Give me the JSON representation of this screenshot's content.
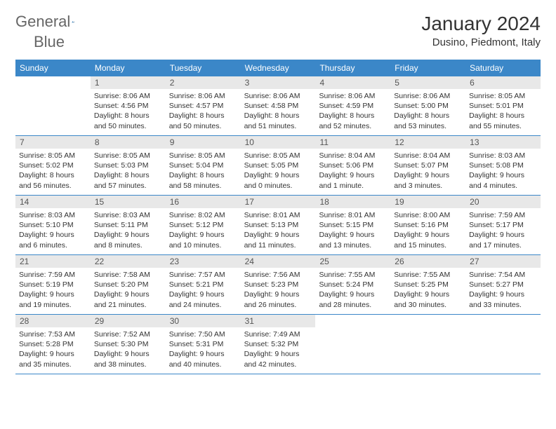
{
  "brand": {
    "word1": "General",
    "word2": "Blue"
  },
  "title": "January 2024",
  "location": "Dusino, Piedmont, Italy",
  "colors": {
    "header_bg": "#3b87c8",
    "daynum_bg": "#e8e8e8",
    "rule": "#3b87c8",
    "logo_blue": "#2a7ab8",
    "text_gray": "#666"
  },
  "day_names": [
    "Sunday",
    "Monday",
    "Tuesday",
    "Wednesday",
    "Thursday",
    "Friday",
    "Saturday"
  ],
  "weeks": [
    [
      {
        "n": "",
        "sr": "",
        "ss": "",
        "dl1": "",
        "dl2": ""
      },
      {
        "n": "1",
        "sr": "Sunrise: 8:06 AM",
        "ss": "Sunset: 4:56 PM",
        "dl1": "Daylight: 8 hours",
        "dl2": "and 50 minutes."
      },
      {
        "n": "2",
        "sr": "Sunrise: 8:06 AM",
        "ss": "Sunset: 4:57 PM",
        "dl1": "Daylight: 8 hours",
        "dl2": "and 50 minutes."
      },
      {
        "n": "3",
        "sr": "Sunrise: 8:06 AM",
        "ss": "Sunset: 4:58 PM",
        "dl1": "Daylight: 8 hours",
        "dl2": "and 51 minutes."
      },
      {
        "n": "4",
        "sr": "Sunrise: 8:06 AM",
        "ss": "Sunset: 4:59 PM",
        "dl1": "Daylight: 8 hours",
        "dl2": "and 52 minutes."
      },
      {
        "n": "5",
        "sr": "Sunrise: 8:06 AM",
        "ss": "Sunset: 5:00 PM",
        "dl1": "Daylight: 8 hours",
        "dl2": "and 53 minutes."
      },
      {
        "n": "6",
        "sr": "Sunrise: 8:05 AM",
        "ss": "Sunset: 5:01 PM",
        "dl1": "Daylight: 8 hours",
        "dl2": "and 55 minutes."
      }
    ],
    [
      {
        "n": "7",
        "sr": "Sunrise: 8:05 AM",
        "ss": "Sunset: 5:02 PM",
        "dl1": "Daylight: 8 hours",
        "dl2": "and 56 minutes."
      },
      {
        "n": "8",
        "sr": "Sunrise: 8:05 AM",
        "ss": "Sunset: 5:03 PM",
        "dl1": "Daylight: 8 hours",
        "dl2": "and 57 minutes."
      },
      {
        "n": "9",
        "sr": "Sunrise: 8:05 AM",
        "ss": "Sunset: 5:04 PM",
        "dl1": "Daylight: 8 hours",
        "dl2": "and 58 minutes."
      },
      {
        "n": "10",
        "sr": "Sunrise: 8:05 AM",
        "ss": "Sunset: 5:05 PM",
        "dl1": "Daylight: 9 hours",
        "dl2": "and 0 minutes."
      },
      {
        "n": "11",
        "sr": "Sunrise: 8:04 AM",
        "ss": "Sunset: 5:06 PM",
        "dl1": "Daylight: 9 hours",
        "dl2": "and 1 minute."
      },
      {
        "n": "12",
        "sr": "Sunrise: 8:04 AM",
        "ss": "Sunset: 5:07 PM",
        "dl1": "Daylight: 9 hours",
        "dl2": "and 3 minutes."
      },
      {
        "n": "13",
        "sr": "Sunrise: 8:03 AM",
        "ss": "Sunset: 5:08 PM",
        "dl1": "Daylight: 9 hours",
        "dl2": "and 4 minutes."
      }
    ],
    [
      {
        "n": "14",
        "sr": "Sunrise: 8:03 AM",
        "ss": "Sunset: 5:10 PM",
        "dl1": "Daylight: 9 hours",
        "dl2": "and 6 minutes."
      },
      {
        "n": "15",
        "sr": "Sunrise: 8:03 AM",
        "ss": "Sunset: 5:11 PM",
        "dl1": "Daylight: 9 hours",
        "dl2": "and 8 minutes."
      },
      {
        "n": "16",
        "sr": "Sunrise: 8:02 AM",
        "ss": "Sunset: 5:12 PM",
        "dl1": "Daylight: 9 hours",
        "dl2": "and 10 minutes."
      },
      {
        "n": "17",
        "sr": "Sunrise: 8:01 AM",
        "ss": "Sunset: 5:13 PM",
        "dl1": "Daylight: 9 hours",
        "dl2": "and 11 minutes."
      },
      {
        "n": "18",
        "sr": "Sunrise: 8:01 AM",
        "ss": "Sunset: 5:15 PM",
        "dl1": "Daylight: 9 hours",
        "dl2": "and 13 minutes."
      },
      {
        "n": "19",
        "sr": "Sunrise: 8:00 AM",
        "ss": "Sunset: 5:16 PM",
        "dl1": "Daylight: 9 hours",
        "dl2": "and 15 minutes."
      },
      {
        "n": "20",
        "sr": "Sunrise: 7:59 AM",
        "ss": "Sunset: 5:17 PM",
        "dl1": "Daylight: 9 hours",
        "dl2": "and 17 minutes."
      }
    ],
    [
      {
        "n": "21",
        "sr": "Sunrise: 7:59 AM",
        "ss": "Sunset: 5:19 PM",
        "dl1": "Daylight: 9 hours",
        "dl2": "and 19 minutes."
      },
      {
        "n": "22",
        "sr": "Sunrise: 7:58 AM",
        "ss": "Sunset: 5:20 PM",
        "dl1": "Daylight: 9 hours",
        "dl2": "and 21 minutes."
      },
      {
        "n": "23",
        "sr": "Sunrise: 7:57 AM",
        "ss": "Sunset: 5:21 PM",
        "dl1": "Daylight: 9 hours",
        "dl2": "and 24 minutes."
      },
      {
        "n": "24",
        "sr": "Sunrise: 7:56 AM",
        "ss": "Sunset: 5:23 PM",
        "dl1": "Daylight: 9 hours",
        "dl2": "and 26 minutes."
      },
      {
        "n": "25",
        "sr": "Sunrise: 7:55 AM",
        "ss": "Sunset: 5:24 PM",
        "dl1": "Daylight: 9 hours",
        "dl2": "and 28 minutes."
      },
      {
        "n": "26",
        "sr": "Sunrise: 7:55 AM",
        "ss": "Sunset: 5:25 PM",
        "dl1": "Daylight: 9 hours",
        "dl2": "and 30 minutes."
      },
      {
        "n": "27",
        "sr": "Sunrise: 7:54 AM",
        "ss": "Sunset: 5:27 PM",
        "dl1": "Daylight: 9 hours",
        "dl2": "and 33 minutes."
      }
    ],
    [
      {
        "n": "28",
        "sr": "Sunrise: 7:53 AM",
        "ss": "Sunset: 5:28 PM",
        "dl1": "Daylight: 9 hours",
        "dl2": "and 35 minutes."
      },
      {
        "n": "29",
        "sr": "Sunrise: 7:52 AM",
        "ss": "Sunset: 5:30 PM",
        "dl1": "Daylight: 9 hours",
        "dl2": "and 38 minutes."
      },
      {
        "n": "30",
        "sr": "Sunrise: 7:50 AM",
        "ss": "Sunset: 5:31 PM",
        "dl1": "Daylight: 9 hours",
        "dl2": "and 40 minutes."
      },
      {
        "n": "31",
        "sr": "Sunrise: 7:49 AM",
        "ss": "Sunset: 5:32 PM",
        "dl1": "Daylight: 9 hours",
        "dl2": "and 42 minutes."
      },
      {
        "n": "",
        "sr": "",
        "ss": "",
        "dl1": "",
        "dl2": ""
      },
      {
        "n": "",
        "sr": "",
        "ss": "",
        "dl1": "",
        "dl2": ""
      },
      {
        "n": "",
        "sr": "",
        "ss": "",
        "dl1": "",
        "dl2": ""
      }
    ]
  ]
}
